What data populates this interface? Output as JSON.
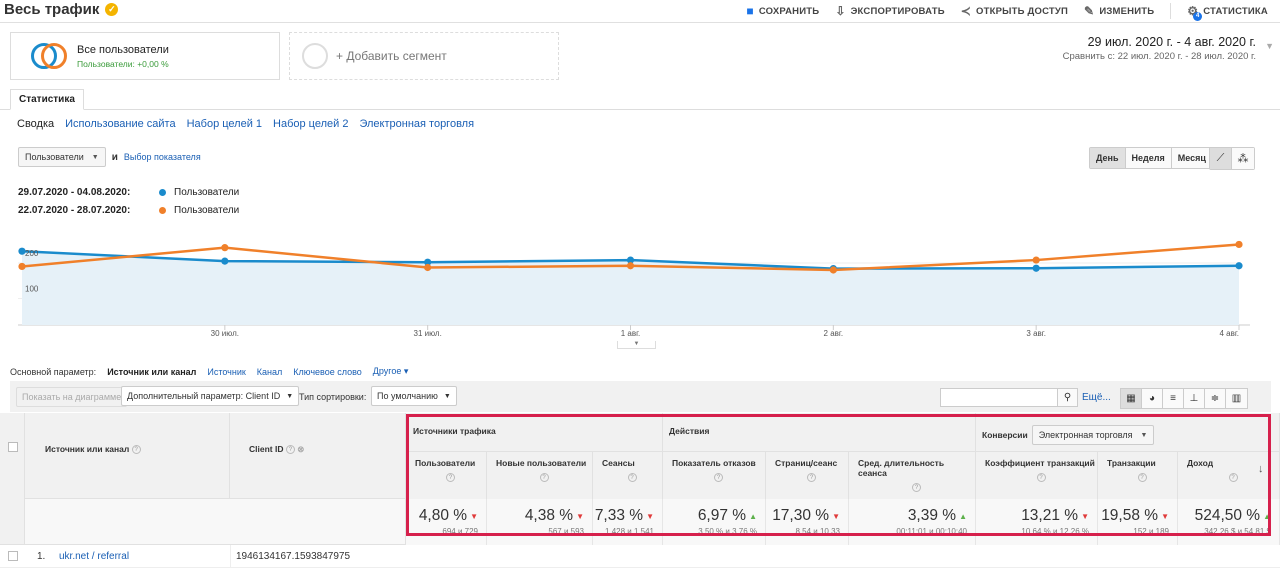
{
  "header": {
    "title": "Весь трафик",
    "actions": [
      {
        "label": "СОХРАНИТЬ",
        "icon": "save-icon"
      },
      {
        "label": "ЭКСПОРТИРОВАТЬ",
        "icon": "export-icon"
      },
      {
        "label": "ОТКРЫТЬ ДОСТУП",
        "icon": "share-icon"
      },
      {
        "label": "ИЗМЕНИТЬ",
        "icon": "pencil-icon"
      },
      {
        "label": "СТАТИСТИКА",
        "icon": "insights-icon",
        "badge": "4"
      }
    ]
  },
  "segments": {
    "active_name": "Все пользователи",
    "active_sub": "Пользователи: +0,00 %",
    "add_label": "+ Добавить сегмент"
  },
  "daterange": {
    "primary": "29 июл. 2020 г. - 4 авг. 2020 г.",
    "compare_label": "Сравнить с:",
    "compare": "22 июл. 2020 г. - 28 июл. 2020 г."
  },
  "tab": "Статистика",
  "subnav": [
    "Сводка",
    "Использование сайта",
    "Набор целей 1",
    "Набор целей 2",
    "Электронная торговля"
  ],
  "metric": {
    "selected": "Пользователи",
    "and": "и",
    "choose": "Выбор показателя"
  },
  "period": [
    "День",
    "Неделя",
    "Месяц"
  ],
  "legend": [
    {
      "range": "29.07.2020 - 04.08.2020:",
      "name": "Пользователи",
      "color": "#1a8bcc"
    },
    {
      "range": "22.07.2020 - 28.07.2020:",
      "name": "Пользователи",
      "color": "#f0802a"
    }
  ],
  "chart_data": {
    "type": "line",
    "x": [
      "29 июл.",
      "30 июл.",
      "31 июл.",
      "1 авг.",
      "2 авг.",
      "3 авг.",
      "4 авг."
    ],
    "xticks": [
      "30 июл.",
      "31 июл.",
      "1 авг.",
      "2 авг.",
      "3 авг.",
      "4 авг."
    ],
    "yticks": [
      "200",
      "100"
    ],
    "ylim": [
      0,
      310
    ],
    "series": [
      {
        "name": "Пользователи",
        "color": "#1a8bcc",
        "values": [
          208,
          180,
          177,
          183,
          159,
          160,
          167
        ]
      },
      {
        "name": "Пользователи",
        "color": "#f0802a",
        "values": [
          165,
          218,
          162,
          167,
          155,
          183,
          227
        ]
      }
    ]
  },
  "primary": {
    "label": "Основной параметр:",
    "active": "Источник или канал",
    "options": [
      "Источник",
      "Канал",
      "Ключевое слово",
      "Другое"
    ]
  },
  "controls": {
    "plot": "Показать на диаграмме",
    "secondary": "Дополнительный параметр: Client ID",
    "sort_label": "Тип сортировки:",
    "sort": "По умолчанию",
    "more": "Ещё..."
  },
  "table": {
    "col_source": "Источник или канал",
    "col_client": "Client ID",
    "groups": {
      "acq": "Источники трафика",
      "beh": "Действия",
      "conv": "Конверсии",
      "conv_select": "Электронная торговля"
    },
    "metrics": [
      {
        "name": "Пользователи",
        "value": "4,80 %",
        "dir": "dn",
        "sub": "694 и 729"
      },
      {
        "name": "Новые пользователи",
        "value": "4,38 %",
        "dir": "dn",
        "sub": "567 и 593"
      },
      {
        "name": "Сеансы",
        "value": "7,33 %",
        "dir": "dn",
        "sub": "1 428 и 1 541"
      },
      {
        "name": "Показатель отказов",
        "value": "6,97 %",
        "dir": "up",
        "sub": "3,50 % и 3,76 %"
      },
      {
        "name": "Страниц/сеанс",
        "value": "17,30 %",
        "dir": "dn",
        "sub": "8,54 и 10,33"
      },
      {
        "name": "Сред. длительность сеанса",
        "value": "3,39 %",
        "dir": "up",
        "sub": "00:11:01 и 00:10:40"
      },
      {
        "name": "Коэффициент транзакций",
        "value": "13,21 %",
        "dir": "dn",
        "sub": "10,64 % и 12,26 %"
      },
      {
        "name": "Транзакции",
        "value": "19,58 %",
        "dir": "dn",
        "sub": "152 и 189"
      },
      {
        "name": "Доход",
        "value": "524,50 %",
        "dir": "up",
        "sub": "342,26 $ и 54,81 $"
      }
    ],
    "row1": {
      "num": "1.",
      "source": "ukr.net",
      "medium": "referral",
      "client": "1946134167.1593847975"
    }
  }
}
